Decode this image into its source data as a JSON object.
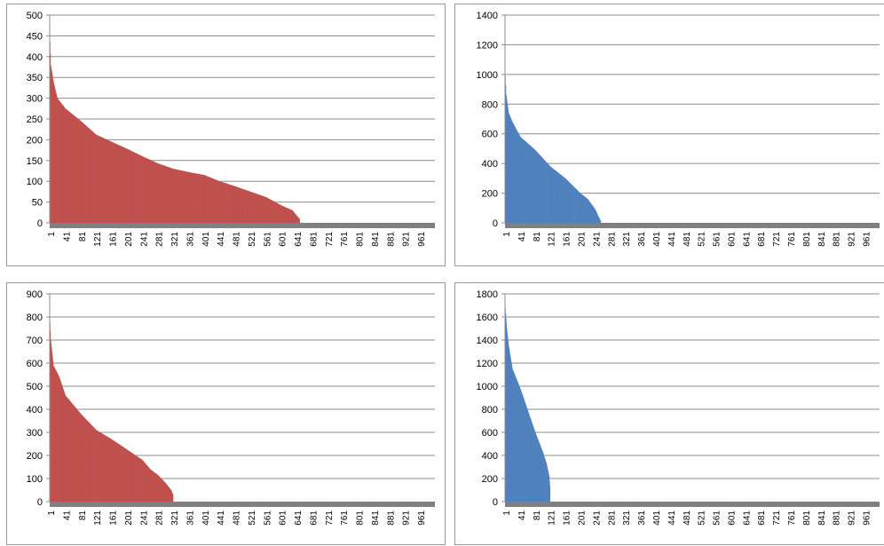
{
  "chart_data": [
    {
      "type": "bar",
      "color": "#c0504d",
      "ylim": [
        0,
        500
      ],
      "yticks": [
        0,
        50,
        100,
        150,
        200,
        250,
        300,
        350,
        400,
        450,
        500
      ],
      "xlim": [
        1,
        1000
      ],
      "xticks": [
        "1",
        "41",
        "81",
        "121",
        "161",
        "201",
        "241",
        "281",
        "321",
        "361",
        "401",
        "441",
        "481",
        "521",
        "561",
        "601",
        "641",
        "681",
        "721",
        "761",
        "801",
        "841",
        "881",
        "921",
        "961"
      ],
      "sorted_descending": true,
      "num_nonzero": 648,
      "profile": [
        [
          1,
          435
        ],
        [
          3,
          380
        ],
        [
          10,
          340
        ],
        [
          20,
          300
        ],
        [
          41,
          275
        ],
        [
          81,
          245
        ],
        [
          121,
          212
        ],
        [
          161,
          195
        ],
        [
          201,
          178
        ],
        [
          241,
          160
        ],
        [
          281,
          143
        ],
        [
          321,
          130
        ],
        [
          361,
          122
        ],
        [
          401,
          115
        ],
        [
          441,
          100
        ],
        [
          481,
          88
        ],
        [
          521,
          75
        ],
        [
          561,
          62
        ],
        [
          601,
          42
        ],
        [
          630,
          30
        ],
        [
          640,
          18
        ],
        [
          648,
          10
        ]
      ]
    },
    {
      "type": "bar",
      "color": "#4f81bd",
      "ylim": [
        0,
        1400
      ],
      "yticks": [
        0,
        200,
        400,
        600,
        800,
        1000,
        1200,
        1400
      ],
      "xlim": [
        1,
        1000
      ],
      "xticks": [
        "1",
        "41",
        "81",
        "121",
        "161",
        "201",
        "241",
        "281",
        "321",
        "361",
        "401",
        "441",
        "481",
        "521",
        "561",
        "601",
        "641",
        "681",
        "721",
        "761",
        "801",
        "841",
        "881",
        "921",
        "961"
      ],
      "sorted_descending": true,
      "num_nonzero": 255,
      "profile": [
        [
          1,
          990
        ],
        [
          3,
          870
        ],
        [
          10,
          740
        ],
        [
          20,
          680
        ],
        [
          41,
          580
        ],
        [
          81,
          490
        ],
        [
          121,
          380
        ],
        [
          161,
          300
        ],
        [
          201,
          200
        ],
        [
          221,
          160
        ],
        [
          241,
          90
        ],
        [
          250,
          40
        ],
        [
          255,
          15
        ]
      ]
    },
    {
      "type": "bar",
      "color": "#c0504d",
      "ylim": [
        0,
        900
      ],
      "yticks": [
        0,
        100,
        200,
        300,
        400,
        500,
        600,
        700,
        800,
        900
      ],
      "xlim": [
        1,
        1000
      ],
      "xticks": [
        "1",
        "41",
        "81",
        "121",
        "161",
        "201",
        "241",
        "281",
        "321",
        "361",
        "401",
        "441",
        "481",
        "521",
        "561",
        "601",
        "641",
        "681",
        "721",
        "761",
        "801",
        "841",
        "881",
        "921",
        "961"
      ],
      "sorted_descending": true,
      "num_nonzero": 320,
      "profile": [
        [
          1,
          775
        ],
        [
          3,
          700
        ],
        [
          10,
          590
        ],
        [
          25,
          540
        ],
        [
          41,
          460
        ],
        [
          81,
          380
        ],
        [
          121,
          310
        ],
        [
          161,
          270
        ],
        [
          201,
          225
        ],
        [
          241,
          180
        ],
        [
          261,
          140
        ],
        [
          281,
          115
        ],
        [
          301,
          80
        ],
        [
          315,
          50
        ],
        [
          320,
          30
        ]
      ]
    },
    {
      "type": "bar",
      "color": "#4f81bd",
      "ylim": [
        0,
        1800
      ],
      "yticks": [
        0,
        200,
        400,
        600,
        800,
        1000,
        1200,
        1400,
        1600,
        1800
      ],
      "xlim": [
        1,
        1000
      ],
      "xticks": [
        "1",
        "41",
        "81",
        "121",
        "161",
        "201",
        "241",
        "281",
        "321",
        "361",
        "401",
        "441",
        "481",
        "521",
        "561",
        "601",
        "641",
        "681",
        "721",
        "761",
        "801",
        "841",
        "881",
        "921",
        "961"
      ],
      "sorted_descending": true,
      "num_nonzero": 120,
      "profile": [
        [
          1,
          1680
        ],
        [
          5,
          1500
        ],
        [
          10,
          1350
        ],
        [
          20,
          1150
        ],
        [
          41,
          980
        ],
        [
          61,
          790
        ],
        [
          81,
          600
        ],
        [
          101,
          430
        ],
        [
          111,
          330
        ],
        [
          118,
          220
        ],
        [
          120,
          140
        ]
      ]
    }
  ]
}
